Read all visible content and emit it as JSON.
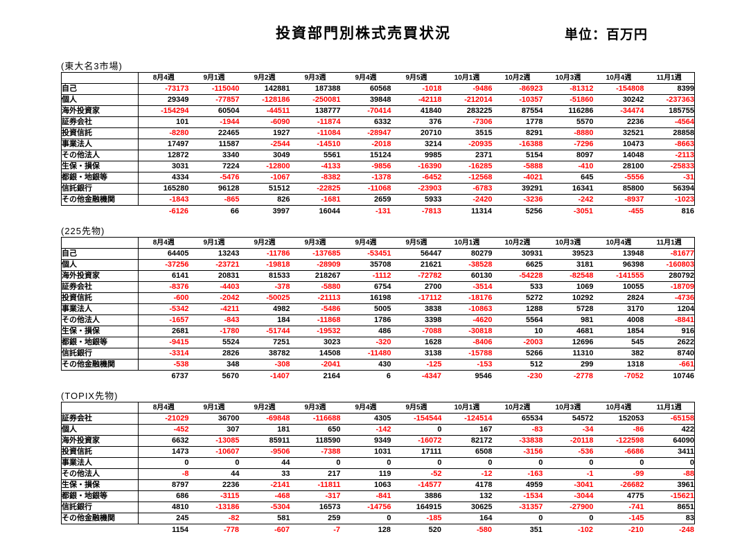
{
  "title": "投資部門別株式売買状況",
  "unit_label": "単位：百万円",
  "colors": {
    "negative": "#ff0000",
    "text": "#000000",
    "background": "#ffffff",
    "border": "#000000"
  },
  "week_columns": [
    "8月4週",
    "9月1週",
    "9月2週",
    "9月3週",
    "9月4週",
    "9月5週",
    "10月1週",
    "10月2週",
    "10月3週",
    "10月4週",
    "11月1週"
  ],
  "tables": [
    {
      "section_label": "(東大名3市場)",
      "rows": [
        {
          "label": "自己",
          "values": [
            "-73173",
            "-115040",
            "142881",
            "187388",
            "60568",
            "-1018",
            "-9486",
            "-86923",
            "-81312",
            "-154808",
            "8399"
          ]
        },
        {
          "label": "個人",
          "values": [
            "29349",
            "-77857",
            "-128186",
            "-250081",
            "39848",
            "-42118",
            "-212014",
            "-10357",
            "-51860",
            "30242",
            "-237363"
          ]
        },
        {
          "label": "海外投資家",
          "values": [
            "-154294",
            "60504",
            "-44511",
            "138777",
            "-70414",
            "41840",
            "283225",
            "87554",
            "116286",
            "-34474",
            "185755"
          ]
        },
        {
          "label": "証券会社",
          "values": [
            "101",
            "-1944",
            "-6090",
            "-11874",
            "6332",
            "376",
            "-7306",
            "1778",
            "5570",
            "2236",
            "-4564"
          ]
        },
        {
          "label": "投資信託",
          "values": [
            "-8280",
            "22465",
            "1927",
            "-11084",
            "-28947",
            "20710",
            "3515",
            "8291",
            "-8880",
            "32521",
            "28858"
          ]
        },
        {
          "label": "事業法人",
          "values": [
            "17497",
            "11587",
            "-2544",
            "-14510",
            "-2018",
            "3214",
            "-20935",
            "-16388",
            "-7296",
            "10473",
            "-8663"
          ]
        },
        {
          "label": "その他法人",
          "values": [
            "12872",
            "3340",
            "3049",
            "5561",
            "15124",
            "9985",
            "2371",
            "5154",
            "8097",
            "14048",
            "-2113"
          ]
        },
        {
          "label": "生保・損保",
          "values": [
            "3031",
            "7224",
            "-12800",
            "-4133",
            "-9856",
            "-16390",
            "-16285",
            "-5888",
            "-410",
            "28100",
            "-25833"
          ]
        },
        {
          "label": "都銀・地銀等",
          "values": [
            "4334",
            "-5476",
            "-1067",
            "-8382",
            "-1378",
            "-6452",
            "-12568",
            "-4021",
            "645",
            "-5556",
            "-31"
          ]
        },
        {
          "label": "信託銀行",
          "values": [
            "165280",
            "96128",
            "51512",
            "-22825",
            "-11068",
            "-23903",
            "-6783",
            "39291",
            "16341",
            "85800",
            "56394"
          ]
        },
        {
          "label": "その他金融機関",
          "values": [
            "-1843",
            "-865",
            "826",
            "-1681",
            "2659",
            "5933",
            "-2420",
            "-3236",
            "-242",
            "-8937",
            "-1023"
          ]
        }
      ],
      "total": [
        "-6126",
        "66",
        "3997",
        "16044",
        "-131",
        "-7813",
        "11314",
        "5256",
        "-3051",
        "-455",
        "816"
      ]
    },
    {
      "section_label": "(225先物)",
      "rows": [
        {
          "label": "自己",
          "values": [
            "64405",
            "13243",
            "-11786",
            "-137685",
            "-53451",
            "56447",
            "80279",
            "30931",
            "39523",
            "13948",
            "-81677"
          ]
        },
        {
          "label": "個人",
          "values": [
            "-37256",
            "-23721",
            "-19818",
            "-28909",
            "35708",
            "21621",
            "-38528",
            "6625",
            "3181",
            "96398",
            "-160803"
          ]
        },
        {
          "label": "海外投資家",
          "values": [
            "6141",
            "20831",
            "81533",
            "218267",
            "-1112",
            "-72782",
            "60130",
            "-54228",
            "-82548",
            "-141555",
            "280792"
          ]
        },
        {
          "label": "証券会社",
          "values": [
            "-8376",
            "-4403",
            "-378",
            "-5880",
            "6754",
            "2700",
            "-3514",
            "533",
            "1069",
            "10055",
            "-18709"
          ]
        },
        {
          "label": "投資信託",
          "values": [
            "-600",
            "-2042",
            "-50025",
            "-21113",
            "16198",
            "-17112",
            "-18176",
            "5272",
            "10292",
            "2824",
            "-4736"
          ]
        },
        {
          "label": "事業法人",
          "values": [
            "-5342",
            "-4211",
            "4982",
            "-5486",
            "5005",
            "3838",
            "-10863",
            "1288",
            "5728",
            "3170",
            "1204"
          ]
        },
        {
          "label": "その他法人",
          "values": [
            "-1657",
            "-843",
            "184",
            "-11868",
            "1786",
            "3398",
            "-4620",
            "5564",
            "981",
            "4008",
            "-8841"
          ]
        },
        {
          "label": "生保・損保",
          "values": [
            "2681",
            "-1780",
            "-51744",
            "-19532",
            "486",
            "-7088",
            "-30818",
            "10",
            "4681",
            "1854",
            "916"
          ]
        },
        {
          "label": "都銀・地銀等",
          "values": [
            "-9415",
            "5524",
            "7251",
            "3023",
            "-320",
            "1628",
            "-8406",
            "-2003",
            "12696",
            "545",
            "2622"
          ]
        },
        {
          "label": "信託銀行",
          "values": [
            "-3314",
            "2826",
            "38782",
            "14508",
            "-11480",
            "3138",
            "-15788",
            "5266",
            "11310",
            "382",
            "8740"
          ]
        },
        {
          "label": "その他金融機関",
          "values": [
            "-538",
            "348",
            "-308",
            "-2041",
            "430",
            "-125",
            "-153",
            "512",
            "299",
            "1318",
            "-661"
          ]
        }
      ],
      "total": [
        "6737",
        "5670",
        "-1407",
        "2164",
        "6",
        "-4347",
        "9546",
        "-230",
        "-2778",
        "-7052",
        "10746"
      ]
    },
    {
      "section_label": "(TOPIX先物)",
      "rows": [
        {
          "label": "証券会社",
          "values": [
            "-21029",
            "36700",
            "-69848",
            "-116688",
            "4305",
            "-154544",
            "-124514",
            "65534",
            "54572",
            "152053",
            "-65158"
          ]
        },
        {
          "label": "個人",
          "values": [
            "-452",
            "307",
            "181",
            "650",
            "-142",
            "0",
            "167",
            "-83",
            "-34",
            "-86",
            "422"
          ]
        },
        {
          "label": "海外投資家",
          "values": [
            "6632",
            "-13085",
            "85911",
            "118590",
            "9349",
            "-16072",
            "82172",
            "-33838",
            "-20118",
            "-122598",
            "64090"
          ]
        },
        {
          "label": "投資信託",
          "values": [
            "1473",
            "-10607",
            "-9506",
            "-7388",
            "1031",
            "17111",
            "6508",
            "-3156",
            "-536",
            "-6686",
            "3411"
          ]
        },
        {
          "label": "事業法人",
          "values": [
            "0",
            "0",
            "44",
            "0",
            "0",
            "0",
            "0",
            "0",
            "0",
            "0",
            "0"
          ]
        },
        {
          "label": "その他法人",
          "values": [
            "-8",
            "44",
            "33",
            "217",
            "119",
            "-52",
            "-12",
            "-163",
            "-1",
            "-99",
            "-88"
          ]
        },
        {
          "label": "生保・損保",
          "values": [
            "8797",
            "2236",
            "-2141",
            "-11811",
            "1063",
            "-14577",
            "4178",
            "4959",
            "-3041",
            "-26682",
            "3961"
          ]
        },
        {
          "label": "都銀・地銀等",
          "values": [
            "686",
            "-3115",
            "-468",
            "-317",
            "-841",
            "3886",
            "132",
            "-1534",
            "-3044",
            "4775",
            "-15621"
          ]
        },
        {
          "label": "信託銀行",
          "values": [
            "4810",
            "-13186",
            "-5304",
            "16573",
            "-14756",
            "164915",
            "30625",
            "-31357",
            "-27900",
            "-741",
            "8651"
          ]
        },
        {
          "label": "その他金融機関",
          "values": [
            "245",
            "-82",
            "581",
            "259",
            "0",
            "-185",
            "164",
            "0",
            "0",
            "-145",
            "83"
          ]
        }
      ],
      "total": [
        "1154",
        "-778",
        "-607",
        "-7",
        "128",
        "520",
        "-580",
        "351",
        "-102",
        "-210",
        "-248"
      ]
    }
  ]
}
